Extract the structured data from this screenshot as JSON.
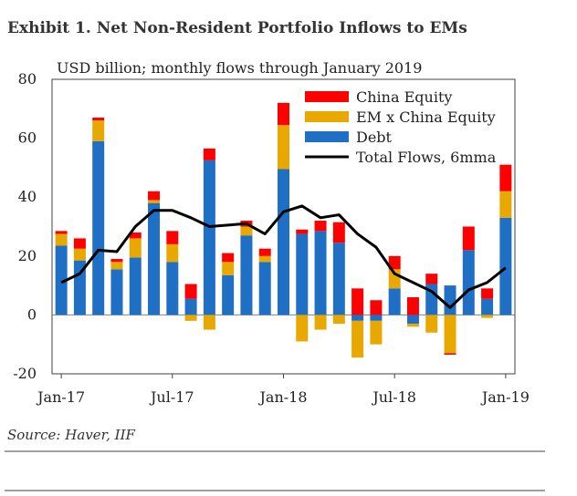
{
  "header": {
    "title": "Exhibit 1. Net Non-Resident Portfolio Inflows to EMs",
    "subtitle": "USD billion; monthly flows through January 2019",
    "source": "Source: Haver, IIF"
  },
  "colors": {
    "china_equity": "#ff0000",
    "em_x_china_equity": "#e8a800",
    "debt": "#1f6fc5",
    "total_flows": "#000000",
    "zero_line": "#808080",
    "frame": "#404040",
    "rule": "#404040"
  },
  "chart_data": {
    "type": "bar",
    "stacked": true,
    "categories": [
      "Jan-17",
      "Feb-17",
      "Mar-17",
      "Apr-17",
      "May-17",
      "Jun-17",
      "Jul-17",
      "Aug-17",
      "Sep-17",
      "Oct-17",
      "Nov-17",
      "Dec-17",
      "Jan-18",
      "Feb-18",
      "Mar-18",
      "Apr-18",
      "May-18",
      "Jun-18",
      "Jul-18",
      "Aug-18",
      "Sep-18",
      "Oct-18",
      "Nov-18",
      "Dec-18",
      "Jan-19"
    ],
    "x_tick_labels": [
      "Jan-17",
      "Jul-17",
      "Jan-18",
      "Jul-18",
      "Jan-19"
    ],
    "x_tick_indices": [
      0,
      6,
      12,
      18,
      24
    ],
    "y_ticks": [
      80,
      60,
      40,
      20,
      0,
      -20
    ],
    "ylim": [
      -20,
      80
    ],
    "legend_position": "top-right",
    "series": [
      {
        "name": "Debt",
        "color_key": "debt",
        "values": [
          23.5,
          18.5,
          59,
          15.5,
          19.5,
          38,
          18,
          5.5,
          52.5,
          13.5,
          27,
          18,
          49.5,
          27.5,
          28.5,
          24.5,
          -2,
          -2,
          9,
          -3,
          10.5,
          10,
          22,
          5.5,
          33
        ]
      },
      {
        "name": "EM x China Equity",
        "color_key": "em_x_china_equity",
        "values": [
          4,
          4,
          7,
          2.5,
          6.5,
          1,
          6,
          -2,
          -5,
          4.5,
          3,
          2,
          15,
          -9,
          -5,
          -3,
          -12.5,
          -8,
          6.5,
          -1,
          -6,
          -13,
          0,
          -1,
          9
        ]
      },
      {
        "name": "China Equity",
        "color_key": "china_equity",
        "values": [
          1,
          3.5,
          1,
          1,
          2,
          3,
          4.5,
          5,
          4,
          3,
          2,
          2.5,
          7.5,
          1.5,
          3.5,
          7,
          9,
          5,
          4.5,
          6,
          3.5,
          -0.5,
          8,
          3.5,
          9
        ]
      },
      {
        "name": "Total Flows, 6mma",
        "color_key": "total_flows",
        "kind": "line",
        "values": [
          11,
          14,
          22,
          21.5,
          30,
          35.5,
          35.5,
          33,
          30,
          30.5,
          31,
          27.5,
          35,
          37,
          33,
          34,
          27.5,
          23,
          14,
          11,
          8,
          2.5,
          8.5,
          11,
          16
        ]
      }
    ],
    "legend": [
      "China Equity",
      "EM x China Equity",
      "Debt",
      "Total Flows, 6mma"
    ]
  }
}
